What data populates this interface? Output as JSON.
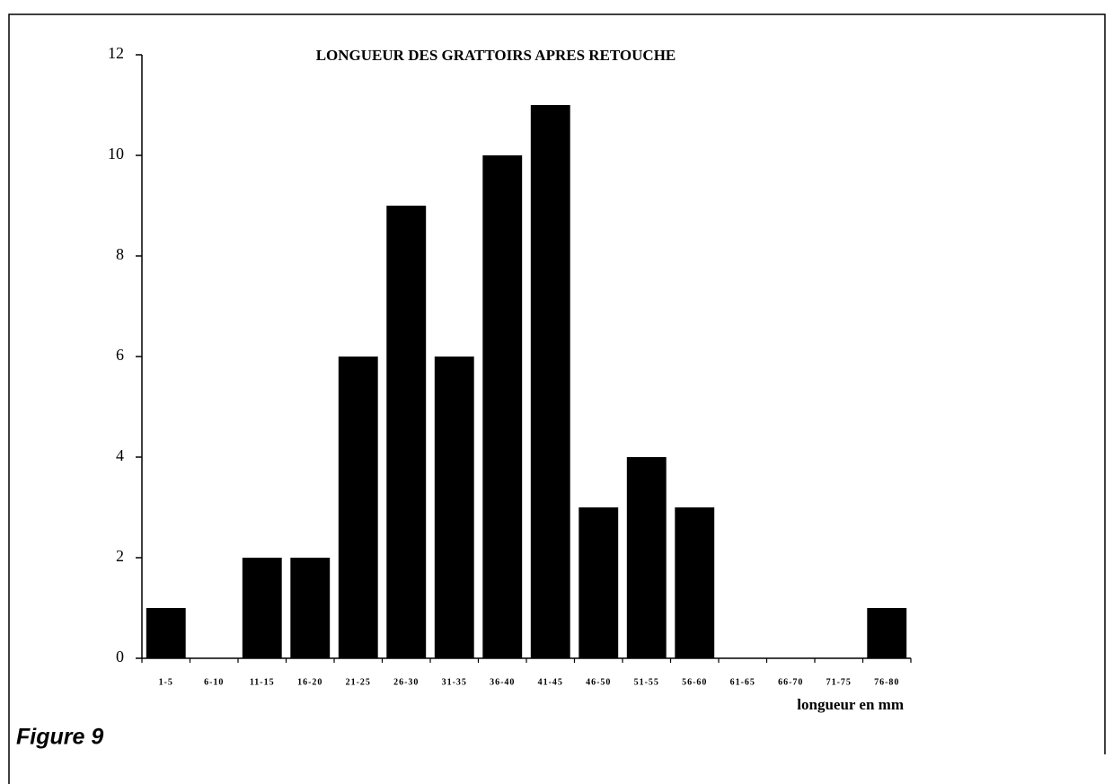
{
  "chart_data": {
    "type": "bar",
    "title": "LONGUEUR DES GRATTOIRS APRES RETOUCHE",
    "x_label": "longueur en mm",
    "caption": "Figure 9",
    "categories": [
      "1-5",
      "6-10",
      "11-15",
      "16-20",
      "21-25",
      "26-30",
      "31-35",
      "36-40",
      "41-45",
      "46-50",
      "51-55",
      "56-60",
      "61-65",
      "66-70",
      "71-75",
      "76-80"
    ],
    "values": [
      1,
      0,
      2,
      2,
      6,
      9,
      6,
      10,
      11,
      3,
      4,
      3,
      0,
      0,
      0,
      1
    ],
    "color": "#000000",
    "ylim": [
      0,
      12
    ],
    "yticks": [
      0,
      2,
      4,
      6,
      8,
      10,
      12
    ],
    "grid": false
  }
}
